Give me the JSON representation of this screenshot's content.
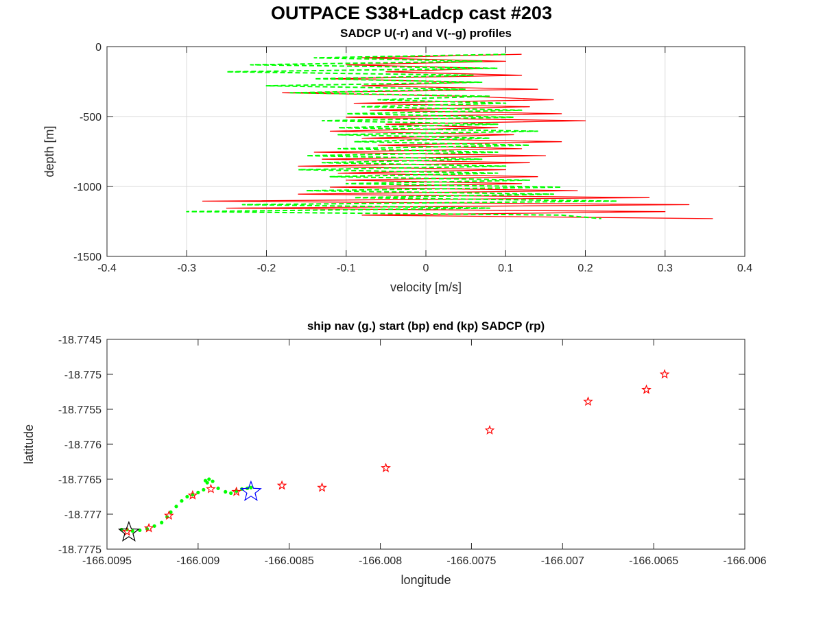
{
  "figure": {
    "title": "OUTPACE S38+Ladcp cast #203"
  },
  "chart_data": [
    {
      "type": "line",
      "title": "SADCP U(-r) and V(--g) profiles",
      "xlabel": "velocity [m/s]",
      "ylabel": "depth [m]",
      "xlim": [
        -0.4,
        0.4
      ],
      "ylim": [
        -1500,
        0
      ],
      "xticks": [
        -0.4,
        -0.3,
        -0.2,
        -0.1,
        0,
        0.1,
        0.2,
        0.3,
        0.4
      ],
      "yticks": [
        0,
        -500,
        -1000,
        -1500
      ],
      "grid": true,
      "colors": {
        "u": "#ff0000",
        "v": "#00ff00"
      },
      "series": [
        {
          "key": "u",
          "style": "solid",
          "depth": [
            -55,
            -80,
            -105,
            -130,
            -155,
            -180,
            -205,
            -230,
            -255,
            -280,
            -305,
            -330,
            -355,
            -380,
            -405,
            -430,
            -455,
            -480,
            -505,
            -530,
            -555,
            -580,
            -605,
            -630,
            -655,
            -680,
            -705,
            -730,
            -755,
            -780,
            -805,
            -830,
            -855,
            -880,
            -905,
            -930,
            -955,
            -980,
            -1005,
            -1030,
            -1055,
            -1080,
            -1105,
            -1130,
            -1155,
            -1180,
            -1205,
            -1230
          ],
          "values": [
            0.12,
            -0.08,
            0.1,
            -0.1,
            0.08,
            -0.05,
            0.12,
            -0.12,
            0.06,
            -0.08,
            0.14,
            -0.18,
            0.05,
            0.16,
            -0.09,
            0.13,
            -0.07,
            0.17,
            -0.1,
            0.2,
            -0.05,
            0.09,
            -0.12,
            0.11,
            -0.08,
            0.17,
            -0.06,
            0.12,
            -0.14,
            0.15,
            -0.13,
            0.13,
            -0.16,
            0.1,
            -0.11,
            0.14,
            -0.1,
            0.12,
            -0.12,
            0.19,
            -0.16,
            0.28,
            -0.28,
            0.33,
            -0.25,
            0.3,
            -0.08,
            0.36
          ]
        },
        {
          "key": "v",
          "style": "dashed",
          "depth": [
            -55,
            -80,
            -105,
            -130,
            -155,
            -180,
            -205,
            -230,
            -255,
            -280,
            -305,
            -330,
            -355,
            -380,
            -405,
            -430,
            -455,
            -480,
            -505,
            -530,
            -555,
            -580,
            -605,
            -630,
            -655,
            -680,
            -705,
            -730,
            -755,
            -780,
            -805,
            -830,
            -855,
            -880,
            -905,
            -930,
            -955,
            -980,
            -1005,
            -1030,
            -1055,
            -1080,
            -1105,
            -1130,
            -1155,
            -1180,
            -1205,
            -1230
          ],
          "values": [
            0.1,
            -0.14,
            0.07,
            -0.22,
            0.09,
            -0.25,
            0.06,
            -0.14,
            0.07,
            -0.2,
            0.05,
            -0.17,
            0.08,
            -0.06,
            0.1,
            -0.08,
            0.12,
            -0.1,
            0.11,
            -0.13,
            0.09,
            -0.11,
            0.14,
            -0.11,
            0.08,
            -0.09,
            0.13,
            -0.11,
            0.09,
            -0.15,
            0.07,
            -0.13,
            0.1,
            -0.16,
            0.09,
            -0.12,
            0.13,
            -0.1,
            0.17,
            -0.15,
            0.16,
            -0.09,
            0.24,
            -0.23,
            0.08,
            -0.3,
            0.17,
            0.22
          ]
        }
      ]
    },
    {
      "type": "scatter",
      "title": "ship nav (g.) start (bp) end (kp) SADCP (rp)",
      "xlabel": "longitude",
      "ylabel": "latitude",
      "xlim": [
        -166.0095,
        -166.006
      ],
      "ylim": [
        -18.7775,
        -18.7745
      ],
      "xticks": [
        -166.0095,
        -166.009,
        -166.0085,
        -166.008,
        -166.0075,
        -166.007,
        -166.0065,
        -166.006
      ],
      "yticks": [
        -18.7745,
        -18.775,
        -18.7755,
        -18.776,
        -18.7765,
        -18.777,
        -18.7775
      ],
      "grid": false,
      "colors": {
        "nav": "#00ff00",
        "start": "#0000ff",
        "end": "#000000",
        "sadcp": "#ff0000"
      },
      "nav_points": {
        "lon": [
          -166.00942,
          -166.00939,
          -166.00936,
          -166.00932,
          -166.00928,
          -166.00924,
          -166.0092,
          -166.00917,
          -166.00915,
          -166.00912,
          -166.00909,
          -166.00906,
          -166.00903,
          -166.009,
          -166.00897,
          -166.00895,
          -166.00896,
          -166.00894,
          -166.00892,
          -166.00889,
          -166.00885,
          -166.00882,
          -166.00879,
          -166.00876,
          -166.00873,
          -166.00871
        ],
        "lat": [
          -18.77722,
          -18.77722,
          -18.77724,
          -18.77723,
          -18.77721,
          -18.77717,
          -18.77712,
          -18.77704,
          -18.77697,
          -18.77689,
          -18.77681,
          -18.77675,
          -18.77672,
          -18.77669,
          -18.77665,
          -18.77655,
          -18.77652,
          -18.7765,
          -18.77653,
          -18.77663,
          -18.77668,
          -18.7767,
          -18.77667,
          -18.77664,
          -18.77663,
          -18.77662
        ]
      },
      "start_point": {
        "lon": -166.00871,
        "lat": -18.77668
      },
      "end_point": {
        "lon": -166.00938,
        "lat": -18.77726
      },
      "sadcp_points": {
        "lon": [
          -166.00939,
          -166.00927,
          -166.00916,
          -166.00903,
          -166.00893,
          -166.00879,
          -166.00854,
          -166.00832,
          -166.00797,
          -166.0074,
          -166.00686,
          -166.00654,
          -166.00644
        ],
        "lat": [
          -18.77725,
          -18.7772,
          -18.77702,
          -18.77673,
          -18.77664,
          -18.77668,
          -18.77659,
          -18.77662,
          -18.77634,
          -18.7758,
          -18.77539,
          -18.77522,
          -18.775
        ]
      }
    }
  ]
}
